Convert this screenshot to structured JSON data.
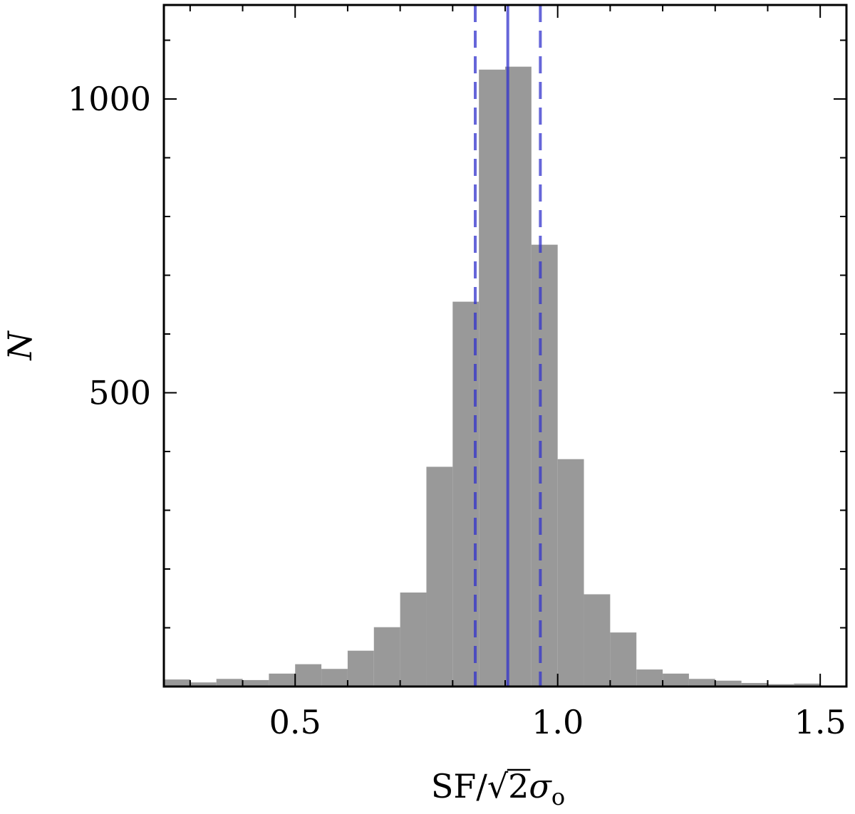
{
  "chart_data": {
    "type": "bar",
    "title": "",
    "xlabel_parts": {
      "prefix": "SF",
      "slash": "/",
      "radical": "√",
      "radicand": "2",
      "symbol": "σ",
      "subscript": "o"
    },
    "ylabel": "N",
    "xlim": [
      0.25,
      1.55
    ],
    "ylim": [
      0,
      1160
    ],
    "xticks": [
      0.5,
      1.0,
      1.5
    ],
    "xtick_labels": [
      "0.5",
      "1.0",
      "1.5"
    ],
    "xticks_minor": [
      0.3,
      0.4,
      0.6,
      0.7,
      0.8,
      0.9,
      1.1,
      1.2,
      1.3,
      1.4
    ],
    "yticks": [
      500,
      1000
    ],
    "ytick_labels": [
      "500",
      "1000"
    ],
    "yticks_minor": [
      100,
      200,
      300,
      400,
      600,
      700,
      800,
      900,
      1100
    ],
    "bin_edges": [
      0.25,
      0.3,
      0.35,
      0.4,
      0.45,
      0.5,
      0.55,
      0.6,
      0.65,
      0.7,
      0.75,
      0.8,
      0.85,
      0.9,
      0.95,
      1.0,
      1.05,
      1.1,
      1.15,
      1.2,
      1.25,
      1.3,
      1.35,
      1.4,
      1.45,
      1.5,
      1.55
    ],
    "values": [
      12,
      7,
      13,
      11,
      22,
      38,
      30,
      61,
      101,
      160,
      374,
      655,
      1050,
      1055,
      752,
      387,
      157,
      92,
      29,
      22,
      13,
      10,
      6,
      4,
      5,
      0
    ],
    "bar_color": "#999999",
    "vlines": [
      {
        "x": 0.905,
        "style": "solid",
        "color": "#3333cc"
      },
      {
        "x": 0.843,
        "style": "dashed",
        "color": "#3333cc"
      },
      {
        "x": 0.967,
        "style": "dashed",
        "color": "#3333cc"
      }
    ],
    "grid": false,
    "legend": "none"
  }
}
